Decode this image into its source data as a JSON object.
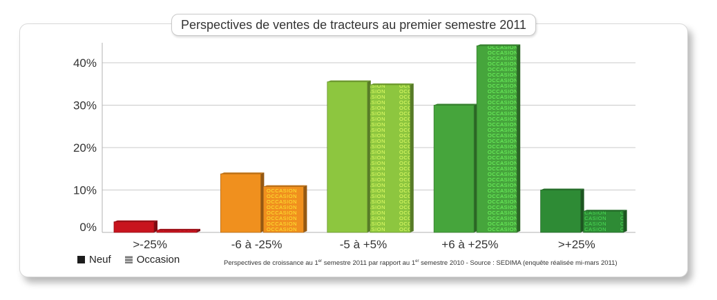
{
  "chart_data": {
    "type": "bar",
    "title": "Perspectives de ventes de tracteurs au premier semestre 2011",
    "categories": [
      ">-25%",
      "-6 à -25%",
      "-5 à +5%",
      "+6 à +25%",
      ">+25%"
    ],
    "series": [
      {
        "name": "Neuf",
        "values": [
          2.5,
          13.8,
          35.5,
          30,
          10
        ]
      },
      {
        "name": "Occasion",
        "values": [
          0.5,
          10.8,
          34.8,
          44,
          5
        ]
      }
    ],
    "category_colors": [
      "#c8141e",
      "#f0901e",
      "#8dc63f",
      "#46a53c",
      "#2e8b35"
    ],
    "ylim": [
      0,
      46
    ],
    "yticks": [
      0,
      10,
      20,
      30,
      40
    ],
    "ytick_labels": [
      "0%",
      "10%",
      "20%",
      "30%",
      "40%"
    ],
    "occasion_pattern_text": "OCCASION",
    "grid": true,
    "legend": "bottom-left"
  },
  "source_note": {
    "part1": "Perspectives de croissance au 1",
    "sup1": "er",
    "part2": " semestre 2011 par rapport au 1",
    "sup2": "er",
    "part3": " semestre 2010 - Source : SEDIMA (enquête réalisée mi-mars 2011)"
  }
}
